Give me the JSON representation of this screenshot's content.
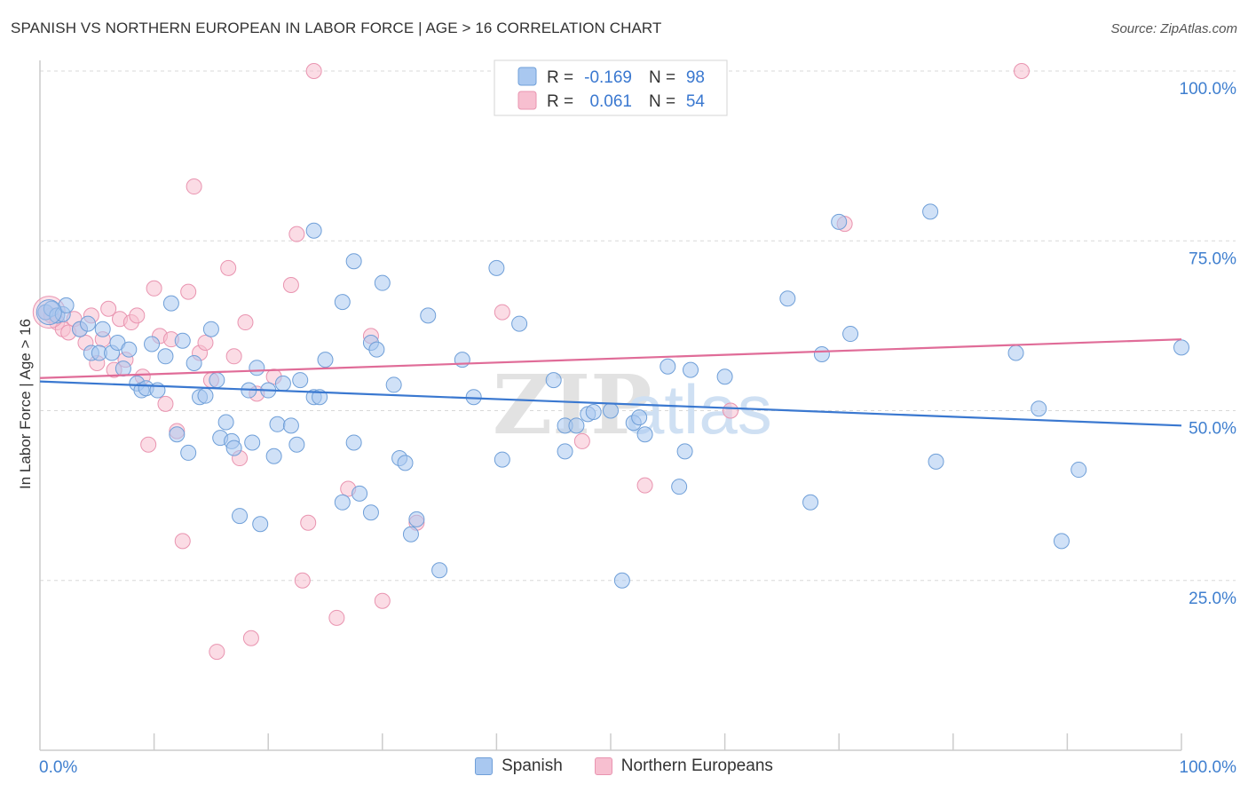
{
  "title": "SPANISH VS NORTHERN EUROPEAN IN LABOR FORCE | AGE > 16 CORRELATION CHART",
  "source": "Source: ZipAtlas.com",
  "watermark": {
    "zip": "ZIP",
    "atlas": "atlas"
  },
  "colors": {
    "blue_fill": "#a9c8f0",
    "blue_stroke": "#6f9fd8",
    "blue_line": "#3a78d0",
    "pink_fill": "#f7bfd0",
    "pink_stroke": "#e994b0",
    "pink_line": "#e06c98",
    "axis_text": "#3f7fcf",
    "grid": "#d8d8d8"
  },
  "legend": {
    "rows": [
      {
        "r_label": "R =",
        "r_value": "-0.169",
        "n_label": "N =",
        "n_value": "98"
      },
      {
        "r_label": "R =",
        "r_value": "0.061",
        "n_label": "N =",
        "n_value": "54"
      }
    ]
  },
  "chart_data": {
    "type": "scatter",
    "ylabel": "In Labor Force | Age > 16",
    "xlim": [
      0,
      100
    ],
    "ylim": [
      0,
      105
    ],
    "y_ticks": [
      {
        "value": 100,
        "label": "100.0%"
      },
      {
        "value": 75,
        "label": "75.0%"
      },
      {
        "value": 50,
        "label": "50.0%"
      },
      {
        "value": 25,
        "label": "25.0%"
      }
    ],
    "x_tick_labels": {
      "left": "0.0%",
      "right": "100.0%"
    },
    "x_minor_ticks": [
      10,
      20,
      30,
      40,
      50,
      60,
      70,
      80,
      90,
      100
    ],
    "grid": true,
    "legend_position": "top-center",
    "series": [
      {
        "name": "Spanish",
        "trend": {
          "x0": 0,
          "y0": 54.3,
          "x1": 100,
          "y1": 47.8
        },
        "points": [
          [
            0.5,
            64.5
          ],
          [
            1.0,
            65.0
          ],
          [
            1.5,
            64.0
          ],
          [
            2.0,
            64.2
          ],
          [
            2.3,
            65.5
          ],
          [
            3.5,
            62.0
          ],
          [
            4.2,
            62.8
          ],
          [
            4.5,
            58.5
          ],
          [
            5.2,
            58.5
          ],
          [
            5.5,
            62.0
          ],
          [
            6.3,
            58.5
          ],
          [
            6.8,
            60.0
          ],
          [
            7.3,
            56.2
          ],
          [
            7.8,
            59.0
          ],
          [
            8.5,
            54.0
          ],
          [
            8.9,
            53.0
          ],
          [
            9.3,
            53.3
          ],
          [
            9.8,
            59.8
          ],
          [
            10.3,
            53.0
          ],
          [
            11.0,
            58.0
          ],
          [
            11.5,
            65.8
          ],
          [
            12.0,
            46.5
          ],
          [
            12.5,
            60.3
          ],
          [
            13.0,
            43.8
          ],
          [
            13.5,
            57.0
          ],
          [
            14.0,
            52.0
          ],
          [
            14.5,
            52.2
          ],
          [
            15.0,
            62.0
          ],
          [
            15.5,
            54.5
          ],
          [
            15.8,
            46.0
          ],
          [
            16.3,
            48.3
          ],
          [
            16.8,
            45.5
          ],
          [
            17.0,
            44.5
          ],
          [
            17.5,
            34.5
          ],
          [
            18.3,
            53.0
          ],
          [
            18.6,
            45.3
          ],
          [
            19.0,
            56.3
          ],
          [
            19.3,
            33.3
          ],
          [
            20.0,
            53.0
          ],
          [
            20.5,
            43.3
          ],
          [
            20.8,
            48.0
          ],
          [
            21.3,
            54.0
          ],
          [
            22.0,
            47.8
          ],
          [
            22.5,
            45.0
          ],
          [
            22.8,
            54.5
          ],
          [
            24.0,
            52.0
          ],
          [
            24.5,
            52.0
          ],
          [
            24.0,
            76.5
          ],
          [
            25.0,
            57.5
          ],
          [
            26.5,
            66.0
          ],
          [
            26.5,
            36.5
          ],
          [
            27.5,
            45.3
          ],
          [
            27.5,
            72.0
          ],
          [
            28.0,
            37.8
          ],
          [
            29.0,
            60.0
          ],
          [
            29.5,
            59.0
          ],
          [
            29.0,
            35.0
          ],
          [
            30.0,
            68.8
          ],
          [
            31.0,
            53.8
          ],
          [
            31.5,
            43.0
          ],
          [
            32.0,
            42.3
          ],
          [
            32.5,
            31.8
          ],
          [
            33.0,
            34.0
          ],
          [
            34.0,
            64.0
          ],
          [
            35.0,
            26.5
          ],
          [
            37.0,
            57.5
          ],
          [
            38.0,
            52.0
          ],
          [
            40.0,
            71.0
          ],
          [
            40.5,
            42.8
          ],
          [
            42.0,
            62.8
          ],
          [
            45.0,
            54.5
          ],
          [
            46.0,
            47.8
          ],
          [
            46.0,
            44.0
          ],
          [
            47.0,
            47.8
          ],
          [
            48.0,
            49.5
          ],
          [
            48.5,
            49.8
          ],
          [
            50.0,
            50.0
          ],
          [
            51.0,
            25.0
          ],
          [
            52.0,
            48.2
          ],
          [
            52.5,
            49.0
          ],
          [
            53.0,
            46.5
          ],
          [
            55.0,
            56.5
          ],
          [
            56.0,
            38.8
          ],
          [
            56.5,
            44.0
          ],
          [
            57.0,
            56.0
          ],
          [
            60.0,
            55.0
          ],
          [
            65.5,
            66.5
          ],
          [
            67.5,
            36.5
          ],
          [
            68.5,
            58.3
          ],
          [
            70.0,
            77.8
          ],
          [
            71.0,
            61.3
          ],
          [
            78.0,
            79.3
          ],
          [
            78.5,
            42.5
          ],
          [
            85.5,
            58.5
          ],
          [
            87.5,
            50.3
          ],
          [
            89.5,
            30.8
          ],
          [
            91.0,
            41.3
          ],
          [
            100.0,
            59.3
          ]
        ]
      },
      {
        "name": "Northern Europeans",
        "trend": {
          "x0": 0,
          "y0": 54.8,
          "x1": 100,
          "y1": 60.5
        },
        "points": [
          [
            0.5,
            64.5
          ],
          [
            1.0,
            64.0
          ],
          [
            1.5,
            63.0
          ],
          [
            2.0,
            62.0
          ],
          [
            2.5,
            61.5
          ],
          [
            3.0,
            63.5
          ],
          [
            3.5,
            62.0
          ],
          [
            4.0,
            60.0
          ],
          [
            4.5,
            64.0
          ],
          [
            5.0,
            57.0
          ],
          [
            5.5,
            60.5
          ],
          [
            6.0,
            65.0
          ],
          [
            6.5,
            56.0
          ],
          [
            7.0,
            63.5
          ],
          [
            7.5,
            57.5
          ],
          [
            8.0,
            63.0
          ],
          [
            8.5,
            64.0
          ],
          [
            9.0,
            55.0
          ],
          [
            9.5,
            45.0
          ],
          [
            10.0,
            68.0
          ],
          [
            10.5,
            61.0
          ],
          [
            11.0,
            51.0
          ],
          [
            11.5,
            60.5
          ],
          [
            12.0,
            47.0
          ],
          [
            12.5,
            30.8
          ],
          [
            13.0,
            67.5
          ],
          [
            13.5,
            83.0
          ],
          [
            14.0,
            58.5
          ],
          [
            14.5,
            60.0
          ],
          [
            15.0,
            54.5
          ],
          [
            15.5,
            14.5
          ],
          [
            16.5,
            71.0
          ],
          [
            17.0,
            58.0
          ],
          [
            17.5,
            43.0
          ],
          [
            18.0,
            63.0
          ],
          [
            18.5,
            16.5
          ],
          [
            19.0,
            52.5
          ],
          [
            20.5,
            55.0
          ],
          [
            22.0,
            68.5
          ],
          [
            22.5,
            76.0
          ],
          [
            23.0,
            25.0
          ],
          [
            23.5,
            33.5
          ],
          [
            24.0,
            100.0
          ],
          [
            26.0,
            19.5
          ],
          [
            27.0,
            38.5
          ],
          [
            29.0,
            61.0
          ],
          [
            30.0,
            22.0
          ],
          [
            33.0,
            33.5
          ],
          [
            47.5,
            45.5
          ],
          [
            53.0,
            39.0
          ],
          [
            60.5,
            50.0
          ],
          [
            70.5,
            77.5
          ],
          [
            86.0,
            100.0
          ],
          [
            40.5,
            64.5
          ]
        ]
      }
    ]
  },
  "legend_bottom": [
    {
      "label": "Spanish"
    },
    {
      "label": "Northern Europeans"
    }
  ]
}
